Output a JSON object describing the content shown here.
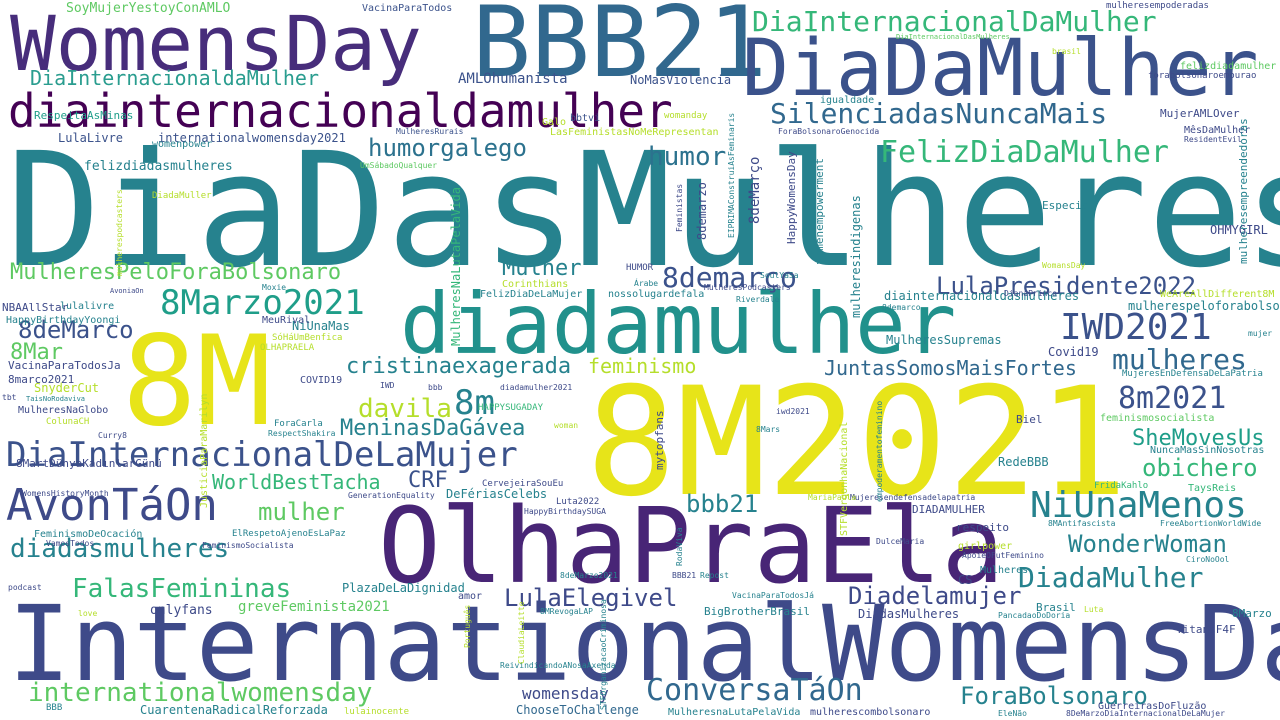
{
  "palette": {
    "deep_purple": "#482576",
    "indigo": "#3e4a89",
    "slate_blue": "#31688e",
    "teal": "#26828e",
    "sea_green": "#1f9e89",
    "green": "#35b779",
    "light_green": "#6ece58",
    "lime": "#b5de2b",
    "yellow": "#fde725"
  },
  "words": [
    {
      "text": "DiaDasMulheres",
      "color": "#26828e"
    },
    {
      "text": "InternationalWomensDay",
      "color": "#3e4a89"
    },
    {
      "text": "8M2021",
      "color": "#e7e419"
    },
    {
      "text": "OlhaPraEla",
      "color": "#482576"
    },
    {
      "text": "BBB21",
      "color": "#31688e"
    },
    {
      "text": "WomensDay",
      "color": "#472d7b"
    },
    {
      "text": "DiaDaMulher",
      "color": "#3b528b"
    },
    {
      "text": "8M",
      "color": "#e7e419"
    },
    {
      "text": "diadamulher",
      "color": "#21918c"
    },
    {
      "text": "diainternacionaldamulher",
      "color": "#440154"
    },
    {
      "text": "DiaInternacionalDaMulher",
      "color": "#35b779"
    },
    {
      "text": "SilenciadasNuncaMais",
      "color": "#31688e"
    },
    {
      "text": "FelizDiaDaMulher",
      "color": "#35b779"
    },
    {
      "text": "humorgalego",
      "color": "#2c728e"
    },
    {
      "text": "humor",
      "color": "#2c728e"
    },
    {
      "text": "DiaInternacionaldaMulher",
      "color": "#2a9d8f"
    },
    {
      "text": "SoyMujerYestoyConAMLO",
      "color": "#5ec962"
    },
    {
      "text": "VacinaParaTodos",
      "color": "#3b528b"
    },
    {
      "text": "AMLOhumanista",
      "color": "#3b528b"
    },
    {
      "text": "NoMasViolencia",
      "color": "#3b528b"
    },
    {
      "text": "RespeitaAsMinas",
      "color": "#1f9e89"
    },
    {
      "text": "bbtvi",
      "color": "#3b528b"
    },
    {
      "text": "Galo",
      "color": "#b5de2b"
    },
    {
      "text": "womanday",
      "color": "#b5de2b"
    },
    {
      "text": "LulaLivre",
      "color": "#3b528b"
    },
    {
      "text": "internationalwomensday2021",
      "color": "#3b528b"
    },
    {
      "text": "MulheresRurais",
      "color": "#3b528b"
    },
    {
      "text": "LasFeministasNoMeRepresentan",
      "color": "#b5de2b"
    },
    {
      "text": "womenpower",
      "color": "#26828e"
    },
    {
      "text": "felizdiadasmulheres",
      "color": "#26828e"
    },
    {
      "text": "UmSábadoQualquer",
      "color": "#5ec962"
    },
    {
      "text": "DiadaMuller",
      "color": "#b5de2b"
    },
    {
      "text": "MulheresPeloForaBolsonaro",
      "color": "#5ec962"
    },
    {
      "text": "Mulher",
      "color": "#26828e"
    },
    {
      "text": "8demarço",
      "color": "#3b528b"
    },
    {
      "text": "LulaPresidente2022",
      "color": "#3b528b"
    },
    {
      "text": "8deMarco",
      "color": "#3b528b"
    },
    {
      "text": "8Marzo2021",
      "color": "#1f9e89"
    },
    {
      "text": "IWD2021",
      "color": "#3b528b"
    },
    {
      "text": "mulheres",
      "color": "#31688e"
    },
    {
      "text": "8Mar",
      "color": "#5ec962"
    },
    {
      "text": "cristinaexagerada",
      "color": "#26828e"
    },
    {
      "text": "feminismo",
      "color": "#b5de2b"
    },
    {
      "text": "JuntasSomosMaisFortes",
      "color": "#31688e"
    },
    {
      "text": "8m2021",
      "color": "#3b528b"
    },
    {
      "text": "8m",
      "color": "#26828e"
    },
    {
      "text": "davila",
      "color": "#b5de2b"
    },
    {
      "text": "MeninasDaGávea",
      "color": "#26828e"
    },
    {
      "text": "SheMovesUs",
      "color": "#1f9e89"
    },
    {
      "text": "DiaInternacionalDeLaMujer",
      "color": "#3b528b"
    },
    {
      "text": "obichero",
      "color": "#35b779"
    },
    {
      "text": "CRF",
      "color": "#3b528b"
    },
    {
      "text": "WorldBestTacha",
      "color": "#35b779"
    },
    {
      "text": "AvonTáOn",
      "color": "#3e4a89"
    },
    {
      "text": "mulher",
      "color": "#5ec962"
    },
    {
      "text": "bbb21",
      "color": "#26828e"
    },
    {
      "text": "NiUnaMenos",
      "color": "#26828e"
    },
    {
      "text": "WonderWoman",
      "color": "#26828e"
    },
    {
      "text": "diadasmulheres",
      "color": "#26828e"
    },
    {
      "text": "DiadaMulher",
      "color": "#26828e"
    },
    {
      "text": "FalasFemininas",
      "color": "#35b779"
    },
    {
      "text": "LulaElegivel",
      "color": "#3e4a89"
    },
    {
      "text": "Diadelamujer",
      "color": "#3e4a89"
    },
    {
      "text": "ConversaTáOn",
      "color": "#31688e"
    },
    {
      "text": "internationalwomensday",
      "color": "#5ec962"
    },
    {
      "text": "womensday",
      "color": "#3e4a89"
    },
    {
      "text": "ForaBolsonaro",
      "color": "#26828e"
    },
    {
      "text": "greveFeminista2021",
      "color": "#5ec962"
    },
    {
      "text": "onlyfans",
      "color": "#3e4a89"
    },
    {
      "text": "PlazaDeLaDignidad",
      "color": "#26828e"
    },
    {
      "text": "CuarentenaRadicalReforzada",
      "color": "#26828e"
    },
    {
      "text": "ChooseToChallenge",
      "color": "#31688e"
    },
    {
      "text": "MulheresnaLutaPelaVida",
      "color": "#26828e"
    },
    {
      "text": "mulherescombolsonaro",
      "color": "#3e4a89"
    },
    {
      "text": "GuerreirasDoFluzão",
      "color": "#3e4a89"
    },
    {
      "text": "TitansF4F",
      "color": "#3e4a89"
    },
    {
      "text": "Brasil",
      "color": "#26828e"
    },
    {
      "text": "8Marzo",
      "color": "#26828e"
    },
    {
      "text": "MujerAMLOver",
      "color": "#3e4a89"
    },
    {
      "text": "MêsDaMulher",
      "color": "#3e4a89"
    },
    {
      "text": "mulherespeloforabolsonaro",
      "color": "#26828e"
    },
    {
      "text": "diainternacionaldasmulheres",
      "color": "#26828e"
    },
    {
      "text": "OHMYGIRL",
      "color": "#3e4a89"
    },
    {
      "text": "Especial",
      "color": "#26828e"
    },
    {
      "text": "felizdiadamulher",
      "color": "#5ec962"
    },
    {
      "text": "forabolsonaroemourao",
      "color": "#3e4a89"
    },
    {
      "text": "mulheresempoderadas",
      "color": "#3e4a89"
    },
    {
      "text": "igualdade",
      "color": "#26828e"
    },
    {
      "text": "DiaInternacionalDasMulheres",
      "color": "#5ec962"
    },
    {
      "text": "brasil",
      "color": "#b5de2b"
    },
    {
      "text": "ForaBolsonaroGenocida",
      "color": "#3e4a89"
    },
    {
      "text": "ResidentEvil",
      "color": "#3e4a89"
    },
    {
      "text": "Covid19",
      "color": "#3e4a89"
    },
    {
      "text": "MujeresEnDefensaDeLaPatria",
      "color": "#26828e"
    },
    {
      "text": "MulheresSupremas",
      "color": "#26828e"
    },
    {
      "text": "NuncaMasSinNosotras",
      "color": "#26828e"
    },
    {
      "text": "RedeBBB",
      "color": "#26828e"
    },
    {
      "text": "Biel",
      "color": "#3e4a89"
    },
    {
      "text": "TaysReis",
      "color": "#35b779"
    },
    {
      "text": "FridaKahlo",
      "color": "#35b779"
    },
    {
      "text": "feminismosocialista",
      "color": "#5ec962"
    },
    {
      "text": "DIADAMULHER",
      "color": "#3e4a89"
    },
    {
      "text": "respeito",
      "color": "#3e4a89"
    },
    {
      "text": "girlpower",
      "color": "#b5de2b"
    },
    {
      "text": "ApoieOFutFeminino",
      "color": "#3e4a89"
    },
    {
      "text": "Mulheres",
      "color": "#26828e"
    },
    {
      "text": "CS",
      "color": "#3e4a89"
    },
    {
      "text": "8MAntifascista",
      "color": "#26828e"
    },
    {
      "text": "FreeAbortionWorldWide",
      "color": "#26828e"
    },
    {
      "text": "CiroNoOol",
      "color": "#26828e"
    },
    {
      "text": "WeAreAllDifferent8M",
      "color": "#b5de2b"
    },
    {
      "text": "DianaPrince",
      "color": "#3e4a89"
    },
    {
      "text": "mujer",
      "color": "#26828e"
    },
    {
      "text": "DiadasMulheres",
      "color": "#3e4a89"
    },
    {
      "text": "BigBrotherBrasil",
      "color": "#26828e"
    },
    {
      "text": "Mujeresendefensadelapatria",
      "color": "#3e4a89"
    },
    {
      "text": "DulceMaria",
      "color": "#3e4a89"
    },
    {
      "text": "Luta",
      "color": "#b5de2b"
    },
    {
      "text": "PancadaoDoDoria",
      "color": "#26828e"
    },
    {
      "text": "HappyBirthdaySUGA",
      "color": "#3e4a89"
    },
    {
      "text": "Luta2022",
      "color": "#3e4a89"
    },
    {
      "text": "CervejeiraSouEu",
      "color": "#3e4a89"
    },
    {
      "text": "DeFériasCelebs",
      "color": "#26828e"
    },
    {
      "text": "MariaPaula",
      "color": "#b5de2b"
    },
    {
      "text": "iwd2021",
      "color": "#3e4a89"
    },
    {
      "text": "8Mars",
      "color": "#26828e"
    },
    {
      "text": "nossolugardefala",
      "color": "#26828e"
    },
    {
      "text": "FelizDiaDeLaMujer",
      "color": "#26828e"
    },
    {
      "text": "Corinthians",
      "color": "#b5de2b"
    },
    {
      "text": "Árabe",
      "color": "#26828e"
    },
    {
      "text": "HUMOR",
      "color": "#3e4a89"
    },
    {
      "text": "diadamulher2021",
      "color": "#3e4a89"
    },
    {
      "text": "8deMarzo2021",
      "color": "#26828e"
    },
    {
      "text": "Repost",
      "color": "#26828e"
    },
    {
      "text": "VacinaParaTodosJá",
      "color": "#26828e"
    },
    {
      "text": "8MRevogaLAP",
      "color": "#26828e"
    },
    {
      "text": "8DeMarzoDiaInternacionalDeLaMujer",
      "color": "#3e4a89"
    },
    {
      "text": "ReivindicandoANosaAxenda",
      "color": "#26828e"
    },
    {
      "text": "EleNão",
      "color": "#26828e"
    },
    {
      "text": "lulainocente",
      "color": "#b5de2b"
    },
    {
      "text": "BBB",
      "color": "#26828e"
    },
    {
      "text": "love",
      "color": "#b5de2b"
    },
    {
      "text": "podcast",
      "color": "#3e4a89"
    },
    {
      "text": "amor",
      "color": "#3e4a89"
    },
    {
      "text": "VamosTodos",
      "color": "#3e4a89"
    },
    {
      "text": "FeminismoSocialista",
      "color": "#3e4a89"
    },
    {
      "text": "ElRespetoAjenoEsLaPaz",
      "color": "#26828e"
    },
    {
      "text": "FeminismoDeOcación",
      "color": "#26828e"
    },
    {
      "text": "GenerationEquality",
      "color": "#3e4a89"
    },
    {
      "text": "WomensHistoryMonth",
      "color": "#3e4a89"
    },
    {
      "text": "8MartDünyaKadınlarGünü",
      "color": "#3e4a89"
    },
    {
      "text": "Curry8",
      "color": "#3e4a89"
    },
    {
      "text": "ColunaCH",
      "color": "#b5de2b"
    },
    {
      "text": "RespectShakira",
      "color": "#26828e"
    },
    {
      "text": "ForaCarla",
      "color": "#26828e"
    },
    {
      "text": "woman",
      "color": "#b5de2b"
    },
    {
      "text": "MulheresNaGlobo",
      "color": "#3e4a89"
    },
    {
      "text": "TaisNoRodaviva",
      "color": "#26828e"
    },
    {
      "text": "tbt",
      "color": "#3e4a89"
    },
    {
      "text": "SnyderCut",
      "color": "#b5de2b"
    },
    {
      "text": "8marco2021",
      "color": "#3e4a89"
    },
    {
      "text": "VacinaParaTodosJa",
      "color": "#3e4a89"
    },
    {
      "text": "COVID19",
      "color": "#3e4a89"
    },
    {
      "text": "IWD",
      "color": "#3e4a89"
    },
    {
      "text": "bbb",
      "color": "#3e4a89"
    },
    {
      "text": "HAPPYSUGADAY",
      "color": "#35b779"
    },
    {
      "text": "OLHAPRAELA",
      "color": "#b5de2b"
    },
    {
      "text": "SóHáUmBenfica",
      "color": "#b5de2b"
    },
    {
      "text": "NiUnaMas",
      "color": "#26828e"
    },
    {
      "text": "MeuRival",
      "color": "#3e4a89"
    },
    {
      "text": "lulalivre",
      "color": "#26828e"
    },
    {
      "text": "HappyBirthdayYoongi",
      "color": "#26828e"
    },
    {
      "text": "NBAAllStar",
      "color": "#3e4a89"
    },
    {
      "text": "AvoniaOn",
      "color": "#3e4a89"
    },
    {
      "text": "Moxie",
      "color": "#26828e"
    },
    {
      "text": "Riverdale",
      "color": "#26828e"
    },
    {
      "text": "MulheresPodcasters",
      "color": "#3e4a89"
    },
    {
      "text": "8demarco",
      "color": "#26828e"
    },
    {
      "text": "WomansDay",
      "color": "#b5de2b"
    },
    {
      "text": "SoulYaSa",
      "color": "#26828e"
    },
    {
      "text": "Feministas",
      "color": "#3e4a89"
    },
    {
      "text": "EIPRIMAConstruiAsFeminaris",
      "color": "#26828e"
    },
    {
      "text": "8deMarço",
      "color": "#3e4a89"
    },
    {
      "text": "8demarzo",
      "color": "#3e4a89"
    },
    {
      "text": "HappyWomensDay",
      "color": "#3e4a89"
    },
    {
      "text": "womenempowerment",
      "color": "#26828e"
    },
    {
      "text": "mulheresindigenas",
      "color": "#26828e"
    },
    {
      "text": "mulheresempreendedoras",
      "color": "#26828e"
    },
    {
      "text": "JusticiaParaMarilyn",
      "color": "#b5de2b"
    },
    {
      "text": "MulheresNaLutaPelaVida",
      "color": "#35b779"
    },
    {
      "text": "mytopfans",
      "color": "#3e4a89"
    },
    {
      "text": "STFVergonhaNacional",
      "color": "#b5de2b"
    },
    {
      "text": "empoderamentofeminino",
      "color": "#26828e"
    },
    {
      "text": "RodaViva",
      "color": "#26828e"
    },
    {
      "text": "STFOrganizacaoCriminosa",
      "color": "#26828e"
    },
    {
      "text": "Português",
      "color": "#b5de2b"
    },
    {
      "text": "ClaudiaLeitte",
      "color": "#b5de2b"
    },
    {
      "text": "BBB21",
      "color": "#3e4a89"
    },
    {
      "text": "mulherespodcasters",
      "color": "#b5de2b"
    },
    {
      "text": "feminismo",
      "color": "#b5de2b"
    }
  ]
}
